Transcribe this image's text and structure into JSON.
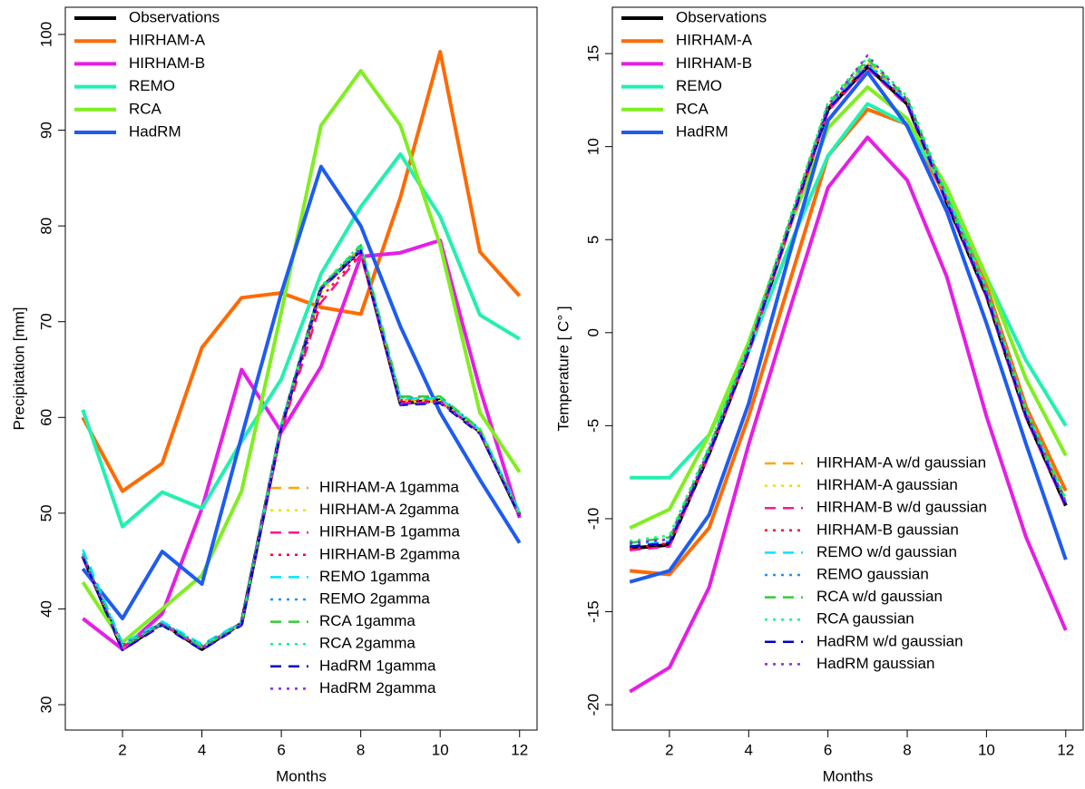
{
  "chart_data": [
    {
      "type": "line",
      "xlabel": "Months",
      "ylabel": "Precipitation [mm]",
      "x": [
        1,
        2,
        3,
        4,
        5,
        6,
        7,
        8,
        9,
        10,
        11,
        12
      ],
      "xlim": [
        0.56,
        12.44
      ],
      "xticks": [
        2,
        4,
        6,
        8,
        10,
        12
      ],
      "ylim": [
        27.35,
        102.84
      ],
      "yticks": [
        30,
        40,
        50,
        60,
        70,
        80,
        90,
        100
      ],
      "series": [
        {
          "name": "Observations",
          "color": "#000000",
          "style": "solid",
          "values": [
            45.5,
            35.8,
            38.5,
            35.8,
            38.5,
            59,
            73.5,
            77.5,
            61.5,
            61.8,
            58.5,
            49.8
          ]
        },
        {
          "name": "HIRHAM-A",
          "color": "#ff6a00",
          "style": "solid",
          "values": [
            60,
            52.3,
            55.2,
            67.3,
            72.5,
            73,
            71.5,
            70.8,
            83,
            98.2,
            77.3,
            72.7
          ]
        },
        {
          "name": "HIRHAM-B",
          "color": "#e61ee6",
          "style": "solid",
          "values": [
            39,
            35.8,
            39.5,
            50.5,
            65,
            58.5,
            65.3,
            76.8,
            77.2,
            78.5,
            63,
            49.5
          ]
        },
        {
          "name": "REMO",
          "color": "#22f0b0",
          "style": "solid",
          "values": [
            60.8,
            48.6,
            52.2,
            50.5,
            57.5,
            64,
            75,
            82,
            87.5,
            81,
            70.7,
            68.2
          ]
        },
        {
          "name": "RCA",
          "color": "#80ee20",
          "style": "solid",
          "values": [
            42.8,
            36.5,
            40,
            43.5,
            52.3,
            71,
            90.5,
            96.2,
            90.5,
            78,
            60.5,
            54.3
          ]
        },
        {
          "name": "HadRM",
          "color": "#1e5cf0",
          "style": "solid",
          "values": [
            44.2,
            39,
            46,
            42.6,
            58,
            73,
            86.2,
            80,
            69.5,
            60.5,
            53.5,
            46.9
          ]
        },
        {
          "name": "HIRHAM-A 1gamma",
          "color": "#ffa500",
          "style": "dashed",
          "values": [
            45.6,
            36.2,
            38.3,
            36.0,
            38.5,
            59.2,
            73.3,
            77.8,
            61.8,
            61.9,
            58.6,
            49.9
          ]
        },
        {
          "name": "HIRHAM-A 2gamma",
          "color": "#e5e500",
          "style": "dotted",
          "values": [
            45.4,
            36.0,
            38.5,
            35.9,
            38.4,
            59.0,
            73.0,
            77.5,
            61.6,
            61.7,
            58.5,
            50.0
          ]
        },
        {
          "name": "HIRHAM-B 1gamma",
          "color": "#ff1493",
          "style": "dashed",
          "values": [
            45.3,
            36.1,
            38.4,
            36.0,
            38.6,
            58.5,
            72.0,
            77.0,
            61.5,
            61.6,
            58.4,
            49.8
          ]
        },
        {
          "name": "HIRHAM-B 2gamma",
          "color": "#ff0040",
          "style": "dotted",
          "values": [
            45.5,
            36.2,
            38.6,
            36.1,
            38.5,
            58.8,
            72.5,
            77.2,
            61.8,
            61.8,
            58.6,
            50.1
          ]
        },
        {
          "name": "REMO 1gamma",
          "color": "#00e5ff",
          "style": "dashed",
          "values": [
            46.2,
            36.4,
            38.7,
            36.3,
            38.6,
            59.3,
            73.5,
            77.6,
            62.0,
            62.0,
            58.7,
            50.2
          ]
        },
        {
          "name": "REMO 2gamma",
          "color": "#1e90ff",
          "style": "dotted",
          "values": [
            45.8,
            36.3,
            38.5,
            36.2,
            38.5,
            59.1,
            73.4,
            77.7,
            62.1,
            62.1,
            58.8,
            50.0
          ]
        },
        {
          "name": "RCA 1gamma",
          "color": "#32cd32",
          "style": "dashed",
          "values": [
            45.6,
            36.0,
            38.4,
            36.0,
            38.4,
            59.0,
            73.6,
            78.0,
            62.2,
            62.2,
            58.8,
            50.0
          ]
        },
        {
          "name": "RCA 2gamma",
          "color": "#00ff7f",
          "style": "dotted",
          "values": [
            45.7,
            36.1,
            38.5,
            36.1,
            38.5,
            59.2,
            73.7,
            78.1,
            62.0,
            62.0,
            58.7,
            49.9
          ]
        },
        {
          "name": "HadRM 1gamma",
          "color": "#0000cd",
          "style": "dashed",
          "values": [
            45.4,
            35.7,
            38.3,
            35.7,
            38.3,
            58.9,
            73.4,
            77.4,
            61.3,
            61.5,
            58.3,
            49.7
          ]
        },
        {
          "name": "HadRM 2gamma",
          "color": "#8a2be2",
          "style": "dotted",
          "values": [
            45.5,
            35.9,
            38.4,
            35.8,
            38.4,
            59.0,
            73.5,
            77.5,
            61.4,
            61.6,
            58.4,
            49.8
          ]
        }
      ]
    },
    {
      "type": "line",
      "xlabel": "Months",
      "ylabel": "Temperature [ C° ]",
      "x": [
        1,
        2,
        3,
        4,
        5,
        6,
        7,
        8,
        9,
        10,
        11,
        12
      ],
      "xlim": [
        0.56,
        12.44
      ],
      "xticks": [
        2,
        4,
        6,
        8,
        10,
        12
      ],
      "ylim": [
        -21.36,
        17.49
      ],
      "yticks": [
        -20,
        -15,
        -10,
        -5,
        0,
        5,
        10,
        15
      ],
      "series": [
        {
          "name": "Observations",
          "color": "#000000",
          "style": "solid",
          "values": [
            -11.6,
            -11.4,
            -6.5,
            -1,
            5.5,
            12,
            14.3,
            12.3,
            7,
            2,
            -4.5,
            -9.3
          ]
        },
        {
          "name": "HIRHAM-A",
          "color": "#ff6a00",
          "style": "solid",
          "values": [
            -12.8,
            -13,
            -10.5,
            -4.5,
            2.5,
            9.5,
            12,
            11.2,
            7.2,
            2.5,
            -4,
            -8.5
          ]
        },
        {
          "name": "HIRHAM-B",
          "color": "#e61ee6",
          "style": "solid",
          "values": [
            -19.3,
            -18,
            -13.7,
            -6,
            1,
            7.8,
            10.5,
            8.2,
            3,
            -4.5,
            -11,
            -16
          ]
        },
        {
          "name": "REMO",
          "color": "#22f0b0",
          "style": "solid",
          "values": [
            -7.8,
            -7.8,
            -5.5,
            -1,
            4.5,
            9.5,
            12.3,
            11.2,
            7.5,
            3,
            -1.5,
            -5
          ]
        },
        {
          "name": "RCA",
          "color": "#80ee20",
          "style": "solid",
          "values": [
            -10.5,
            -9.5,
            -5.5,
            -0.5,
            5.5,
            11,
            13.2,
            11.5,
            7.8,
            3,
            -2.5,
            -6.6
          ]
        },
        {
          "name": "HadRM",
          "color": "#1e5cf0",
          "style": "solid",
          "values": [
            -13.4,
            -12.8,
            -9.8,
            -3.8,
            4,
            11.4,
            14,
            11.1,
            6.5,
            0.5,
            -6,
            -12.2
          ]
        },
        {
          "name": "HIRHAM-A w/d gaussian",
          "color": "#ffa500",
          "style": "dashed",
          "values": [
            -11.5,
            -11.2,
            -6.3,
            -0.8,
            5.7,
            12.2,
            14.5,
            12.5,
            7.2,
            2.2,
            -4.3,
            -9.1
          ]
        },
        {
          "name": "HIRHAM-A gaussian",
          "color": "#e5e500",
          "style": "dotted",
          "values": [
            -11.4,
            -11.1,
            -6.2,
            -0.7,
            5.8,
            12.3,
            14.6,
            12.6,
            7.3,
            2.3,
            -4.2,
            -9.0
          ]
        },
        {
          "name": "HIRHAM-B w/d gaussian",
          "color": "#ff1493",
          "style": "dashed",
          "values": [
            -11.7,
            -11.5,
            -6.6,
            -1.1,
            5.4,
            11.9,
            14.2,
            12.2,
            6.9,
            1.9,
            -4.6,
            -9.4
          ]
        },
        {
          "name": "HIRHAM-B gaussian",
          "color": "#ff0040",
          "style": "dotted",
          "values": [
            -11.6,
            -11.3,
            -6.4,
            -0.9,
            5.6,
            12.1,
            14.4,
            12.4,
            7.1,
            2.1,
            -4.4,
            -9.2
          ]
        },
        {
          "name": "REMO w/d gaussian",
          "color": "#00e5ff",
          "style": "dashed",
          "values": [
            -11.5,
            -11.2,
            -6.4,
            -0.9,
            5.6,
            12.1,
            14.4,
            12.4,
            7.1,
            2.1,
            -4.4,
            -9.2
          ]
        },
        {
          "name": "REMO gaussian",
          "color": "#1e90ff",
          "style": "dotted",
          "values": [
            -11.4,
            -11.1,
            -6.3,
            -0.8,
            5.7,
            12.2,
            14.5,
            12.5,
            7.2,
            2.2,
            -4.3,
            -9.1
          ]
        },
        {
          "name": "RCA w/d gaussian",
          "color": "#32cd32",
          "style": "dashed",
          "values": [
            -11.3,
            -11.0,
            -6.2,
            -0.7,
            5.8,
            12.3,
            14.7,
            12.6,
            7.3,
            2.3,
            -4.2,
            -9.0
          ]
        },
        {
          "name": "RCA gaussian",
          "color": "#00ff7f",
          "style": "dotted",
          "values": [
            -11.2,
            -10.9,
            -6.1,
            -0.6,
            5.9,
            12.4,
            14.8,
            12.7,
            7.4,
            2.4,
            -4.1,
            -8.9
          ]
        },
        {
          "name": "HadRM w/d gaussian",
          "color": "#0000cd",
          "style": "dashed",
          "values": [
            -11.5,
            -11.3,
            -6.5,
            -1.0,
            5.5,
            12.0,
            14.3,
            12.3,
            7.0,
            2.0,
            -4.5,
            -9.3
          ]
        },
        {
          "name": "HadRM gaussian",
          "color": "#8a2be2",
          "style": "dotted",
          "values": [
            -11.3,
            -11.1,
            -6.3,
            -0.8,
            5.7,
            12.2,
            14.9,
            12.5,
            7.2,
            2.2,
            -4.3,
            -9.1
          ]
        }
      ]
    }
  ]
}
